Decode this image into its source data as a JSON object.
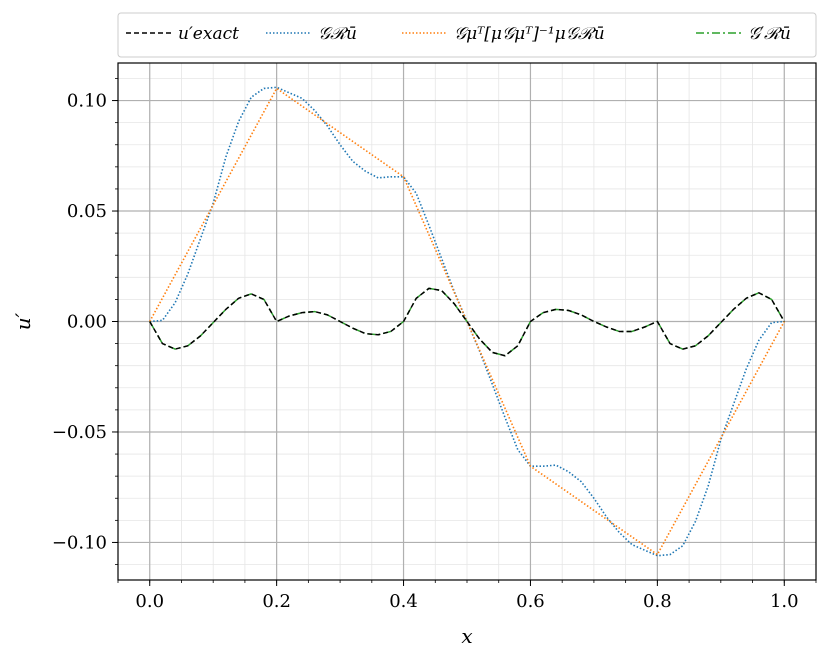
{
  "chart_data": {
    "type": "line",
    "xlabel": "x",
    "ylabel": "u′",
    "xlim": [
      -0.05,
      1.05
    ],
    "ylim": [
      -0.117,
      0.117
    ],
    "xticks": [
      0.0,
      0.2,
      0.4,
      0.6,
      0.8,
      1.0
    ],
    "xtick_labels": [
      "0.0",
      "0.2",
      "0.4",
      "0.6",
      "0.8",
      "1.0"
    ],
    "yticks": [
      0.1,
      0.05,
      0.0,
      -0.05,
      -0.1
    ],
    "ytick_labels": [
      "0.10",
      "0.05",
      "0.00",
      "−0.05",
      "−0.10"
    ],
    "grid": "major and minor",
    "legend": {
      "placement": "top, outside plot",
      "entries": [
        {
          "label": "u′exact",
          "color": "#000000",
          "style": "dashed"
        },
        {
          "label": "𝒢ℛū",
          "color": "#1f77b4",
          "style": "dotted"
        },
        {
          "label": "𝒢μᵀ[μ𝒢μᵀ]⁻¹μ𝒢ℛū",
          "color": "#ff7f0e",
          "style": "dotted"
        },
        {
          "label": "𝒢′ℛū",
          "color": "#2ca02c",
          "style": "dashdot"
        }
      ]
    },
    "series": [
      {
        "name": "u′exact",
        "color": "#000000",
        "x": [
          0.0,
          0.02,
          0.04,
          0.06,
          0.08,
          0.1,
          0.12,
          0.14,
          0.16,
          0.18,
          0.2,
          0.22,
          0.24,
          0.26,
          0.28,
          0.3,
          0.32,
          0.34,
          0.36,
          0.38,
          0.4,
          0.42,
          0.44,
          0.46,
          0.48,
          0.5,
          0.52,
          0.54,
          0.56,
          0.58,
          0.6,
          0.62,
          0.64,
          0.66,
          0.68,
          0.7,
          0.72,
          0.74,
          0.76,
          0.78,
          0.8,
          0.82,
          0.84,
          0.86,
          0.88,
          0.9,
          0.92,
          0.94,
          0.96,
          0.98,
          1.0
        ],
        "y": [
          0.0,
          -0.01,
          -0.0125,
          -0.011,
          -0.0065,
          -0.0005,
          0.0055,
          0.0105,
          0.0125,
          0.01,
          0.0,
          0.0025,
          0.004,
          0.0045,
          0.003,
          0.0,
          -0.003,
          -0.0055,
          -0.006,
          -0.0045,
          0.0,
          0.0105,
          0.015,
          0.014,
          0.008,
          0.0,
          -0.008,
          -0.014,
          -0.0155,
          -0.011,
          0.0,
          0.004,
          0.0055,
          0.005,
          0.003,
          0.0,
          -0.0025,
          -0.0045,
          -0.0045,
          -0.0025,
          0.0,
          -0.01,
          -0.0125,
          -0.011,
          -0.0065,
          -0.0005,
          0.0055,
          0.0105,
          0.013,
          0.01,
          0.0
        ]
      },
      {
        "name": "𝒢ℛū",
        "color": "#1f77b4",
        "x": [
          0.0,
          0.02,
          0.04,
          0.06,
          0.08,
          0.1,
          0.12,
          0.14,
          0.16,
          0.18,
          0.2,
          0.22,
          0.24,
          0.26,
          0.28,
          0.3,
          0.32,
          0.34,
          0.36,
          0.38,
          0.4,
          0.42,
          0.44,
          0.46,
          0.48,
          0.5,
          0.52,
          0.54,
          0.56,
          0.58,
          0.6,
          0.62,
          0.64,
          0.66,
          0.68,
          0.7,
          0.72,
          0.74,
          0.76,
          0.78,
          0.8,
          0.82,
          0.84,
          0.86,
          0.88,
          0.9,
          0.92,
          0.94,
          0.96,
          0.98,
          1.0
        ],
        "y": [
          0.0,
          0.0005,
          0.0085,
          0.0215,
          0.0375,
          0.0535,
          0.0745,
          0.0905,
          0.1015,
          0.1055,
          0.106,
          0.1035,
          0.101,
          0.0955,
          0.0885,
          0.08,
          0.0725,
          0.068,
          0.065,
          0.0655,
          0.0655,
          0.058,
          0.0435,
          0.0285,
          0.0135,
          0.0,
          -0.0135,
          -0.0285,
          -0.0435,
          -0.058,
          -0.0655,
          -0.0655,
          -0.065,
          -0.068,
          -0.0725,
          -0.08,
          -0.0885,
          -0.0955,
          -0.101,
          -0.1035,
          -0.106,
          -0.1055,
          -0.1015,
          -0.0905,
          -0.0745,
          -0.0535,
          -0.0375,
          -0.0215,
          -0.0085,
          -0.0005,
          0.0
        ]
      },
      {
        "name": "𝒢μᵀ[μ𝒢μᵀ]⁻¹μ𝒢ℛū",
        "color": "#ff7f0e",
        "x": [
          0.0,
          0.2,
          0.4,
          0.6,
          0.8,
          1.0
        ],
        "y": [
          0.0,
          0.1055,
          0.0655,
          -0.0655,
          -0.1055,
          0.0
        ]
      },
      {
        "name": "𝒢′ℛū",
        "color": "#2ca02c",
        "x": [
          0.0,
          0.02,
          0.04,
          0.06,
          0.08,
          0.1,
          0.12,
          0.14,
          0.16,
          0.18,
          0.2,
          0.22,
          0.24,
          0.26,
          0.28,
          0.3,
          0.32,
          0.34,
          0.36,
          0.38,
          0.4,
          0.42,
          0.44,
          0.46,
          0.48,
          0.5,
          0.52,
          0.54,
          0.56,
          0.58,
          0.6,
          0.62,
          0.64,
          0.66,
          0.68,
          0.7,
          0.72,
          0.74,
          0.76,
          0.78,
          0.8,
          0.82,
          0.84,
          0.86,
          0.88,
          0.9,
          0.92,
          0.94,
          0.96,
          0.98,
          1.0
        ],
        "y": [
          0.0,
          -0.01,
          -0.0125,
          -0.011,
          -0.0065,
          -0.0005,
          0.0055,
          0.0105,
          0.0125,
          0.01,
          0.0,
          0.0025,
          0.004,
          0.0045,
          0.003,
          0.0,
          -0.003,
          -0.0055,
          -0.006,
          -0.0045,
          0.0,
          0.0105,
          0.015,
          0.014,
          0.008,
          0.0,
          -0.008,
          -0.014,
          -0.0155,
          -0.011,
          0.0,
          0.004,
          0.0055,
          0.005,
          0.003,
          0.0,
          -0.0025,
          -0.0045,
          -0.0045,
          -0.0025,
          0.0,
          -0.01,
          -0.0125,
          -0.011,
          -0.0065,
          -0.0005,
          0.0055,
          0.0105,
          0.013,
          0.01,
          0.0
        ]
      }
    ]
  }
}
